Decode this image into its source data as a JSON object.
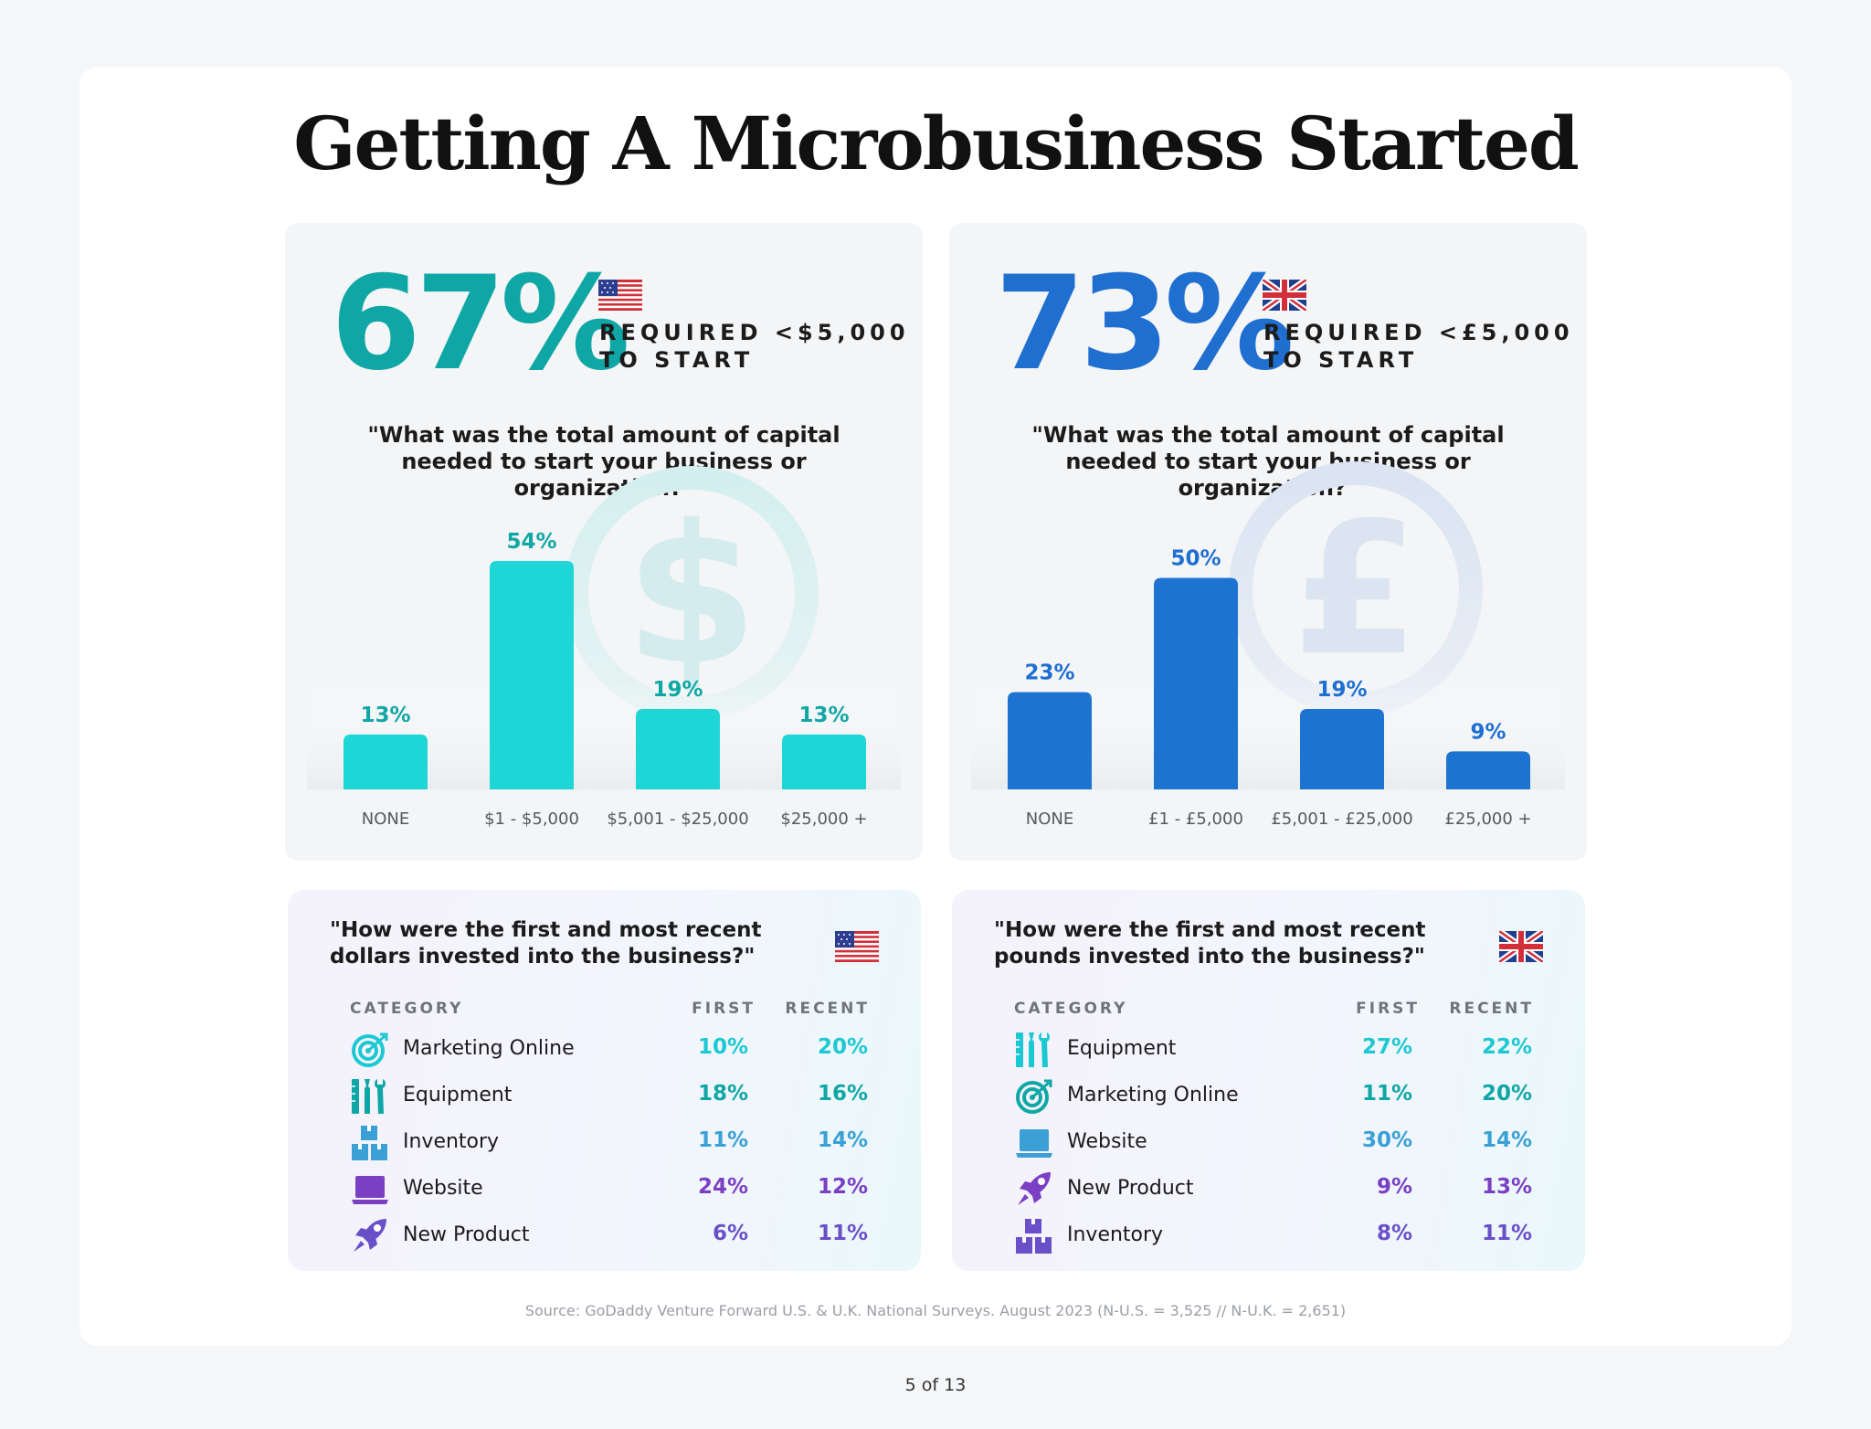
{
  "title": "Getting A Microbusiness Started",
  "colors": {
    "teal": "#0fa7a5",
    "teal_bar": "#1fd6d6",
    "blue": "#1f6fd1",
    "blue_bar": "#1d74d0",
    "purple": "#7b3fc4",
    "cyan": "#1cc8d2",
    "lightblue": "#3aa0d6"
  },
  "us": {
    "big_pct": "67%",
    "req_line1": "REQUIRED <$5,000",
    "req_line2": "TO START",
    "question": "\"What was the total amount of capital needed to start your business or organization?\"",
    "table_question": "\"How were the first and most recent dollars invested into the business?\"",
    "table_headers": {
      "category": "CATEGORY",
      "first": "FIRST",
      "recent": "RECENT"
    },
    "rows": [
      {
        "icon": "target-icon",
        "label": "Marketing Online",
        "first": "10%",
        "recent": "20%",
        "color": "#1cc8d2"
      },
      {
        "icon": "tools-icon",
        "label": "Equipment",
        "first": "18%",
        "recent": "16%",
        "color": "#0fa7a5"
      },
      {
        "icon": "boxes-icon",
        "label": "Inventory",
        "first": "11%",
        "recent": "14%",
        "color": "#3aa0d6"
      },
      {
        "icon": "laptop-icon",
        "label": "Website",
        "first": "24%",
        "recent": "12%",
        "color": "#7b3fc4"
      },
      {
        "icon": "rocket-icon",
        "label": "New Product",
        "first": "6%",
        "recent": "11%",
        "color": "#6a50c8"
      }
    ]
  },
  "uk": {
    "big_pct": "73%",
    "req_line1": "REQUIRED <£5,000",
    "req_line2": "TO START",
    "question": "\"What was the total amount of capital needed to start your business or organization?\"",
    "table_question": "\"How were the first and most recent pounds invested into the business?\"",
    "table_headers": {
      "category": "CATEGORY",
      "first": "FIRST",
      "recent": "RECENT"
    },
    "rows": [
      {
        "icon": "tools-icon",
        "label": "Equipment",
        "first": "27%",
        "recent": "22%",
        "color": "#1cc8d2"
      },
      {
        "icon": "target-icon",
        "label": "Marketing Online",
        "first": "11%",
        "recent": "20%",
        "color": "#0fa7a5"
      },
      {
        "icon": "laptop-icon",
        "label": "Website",
        "first": "30%",
        "recent": "14%",
        "color": "#3aa0d6"
      },
      {
        "icon": "rocket-icon",
        "label": "New Product",
        "first": "9%",
        "recent": "13%",
        "color": "#7b3fc4"
      },
      {
        "icon": "boxes-icon",
        "label": "Inventory",
        "first": "8%",
        "recent": "11%",
        "color": "#6a50c8"
      }
    ]
  },
  "chart_data": [
    {
      "type": "bar",
      "categories": [
        "NONE",
        "$1 - $5,000",
        "$5,001 - $25,000",
        "$25,000 +"
      ],
      "values": [
        13,
        54,
        19,
        13
      ],
      "value_labels": [
        "13%",
        "54%",
        "19%",
        "13%"
      ],
      "ylim": [
        0,
        60
      ],
      "grid": false,
      "color": "#1fd6d6",
      "label_color": "#0fa7a5"
    },
    {
      "type": "bar",
      "categories": [
        "NONE",
        "£1 - £5,000",
        "£5,001 - £25,000",
        "£25,000 +"
      ],
      "values": [
        23,
        50,
        19,
        9
      ],
      "value_labels": [
        "23%",
        "50%",
        "19%",
        "9%"
      ],
      "ylim": [
        0,
        60
      ],
      "grid": false,
      "color": "#1d74d0",
      "label_color": "#1f6fd1"
    }
  ],
  "source": "Source: GoDaddy Venture Forward U.S. & U.K. National Surveys. August 2023  (N-U.S. = 3,525 // N-U.K. = 2,651)",
  "page_number": "5 of 13"
}
